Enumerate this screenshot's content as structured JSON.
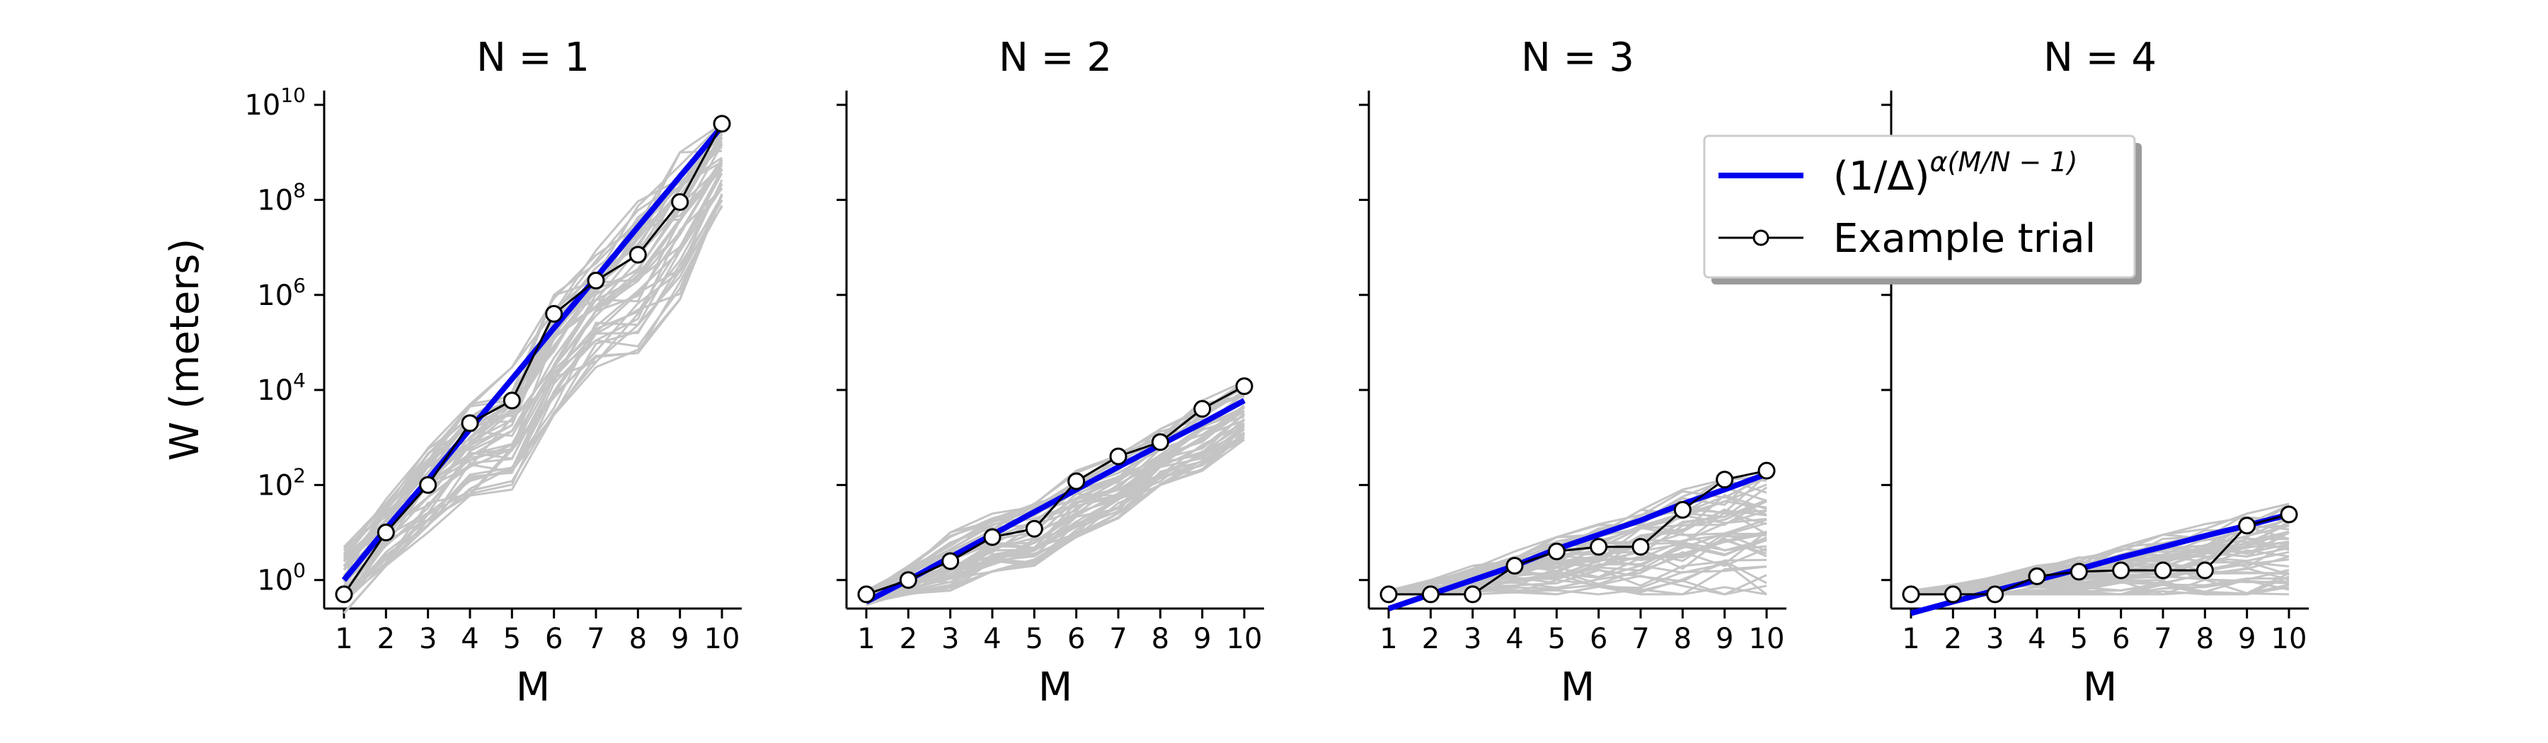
{
  "legend": {
    "fit_label": "(1/Δ)",
    "fit_exponent": "α(M/N − 1)",
    "example_label": "Example trial",
    "placement": "upper-right (over panels N = 3 and N = 4)"
  },
  "colors": {
    "fit": "#0000ee",
    "example": "#000000",
    "trials": "#c4c4c4",
    "marker_fill": "#ffffff"
  },
  "chart_data": [
    {
      "type": "line",
      "title": "N = 1",
      "xlabel": "M",
      "ylabel": "W (meters)",
      "yscale": "log",
      "ylim_exp": [
        -1,
        10
      ],
      "yticks": [
        {
          "base": "10",
          "exp": "0"
        },
        {
          "base": "10",
          "exp": "2"
        },
        {
          "base": "10",
          "exp": "4"
        },
        {
          "base": "10",
          "exp": "6"
        },
        {
          "base": "10",
          "exp": "8"
        },
        {
          "base": "10",
          "exp": "10"
        }
      ],
      "xticks": [
        "1",
        "2",
        "3",
        "4",
        "5",
        "6",
        "7",
        "8",
        "9",
        "10"
      ],
      "x": [
        1,
        2,
        3,
        4,
        5,
        6,
        7,
        8,
        9,
        10
      ],
      "fit_line": [
        1.0,
        12,
        130,
        1500,
        17000,
        200000,
        2300000,
        27000000,
        310000000,
        3500000000
      ],
      "example_trial": [
        0.5,
        10,
        100,
        2000,
        6000,
        400000,
        2000000,
        7000000,
        90000000,
        4000000000
      ],
      "trials_band_low": [
        0.2,
        2,
        10,
        60,
        80,
        3000,
        30000,
        60000,
        800000,
        70000000
      ],
      "trials_band_high": [
        5,
        50,
        600,
        5000,
        30000,
        1000000,
        10000000,
        100000000,
        1000000000,
        4000000000
      ]
    },
    {
      "type": "line",
      "title": "N = 2",
      "xlabel": "M",
      "ylabel": "",
      "yscale": "log",
      "ylim_exp": [
        -1,
        10
      ],
      "xticks": [
        "1",
        "2",
        "3",
        "4",
        "5",
        "6",
        "7",
        "8",
        "9",
        "10"
      ],
      "x": [
        1,
        2,
        3,
        4,
        5,
        6,
        7,
        8,
        9,
        10
      ],
      "fit_line": [
        0.35,
        1.0,
        3.0,
        9,
        27,
        80,
        240,
        700,
        2000,
        6000
      ],
      "example_trial": [
        0.5,
        1.0,
        2.5,
        8,
        12,
        120,
        400,
        800,
        4000,
        12000
      ],
      "trials_band_low": [
        0.3,
        0.5,
        0.6,
        1.5,
        2,
        8,
        20,
        100,
        200,
        900
      ],
      "trials_band_high": [
        0.6,
        2,
        10,
        25,
        50,
        200,
        500,
        1500,
        6000,
        15000
      ]
    },
    {
      "type": "line",
      "title": "N = 3",
      "xlabel": "M",
      "ylabel": "",
      "yscale": "log",
      "ylim_exp": [
        -1,
        10
      ],
      "xticks": [
        "1",
        "2",
        "3",
        "4",
        "5",
        "6",
        "7",
        "8",
        "9",
        "10"
      ],
      "x": [
        1,
        2,
        3,
        4,
        5,
        6,
        7,
        8,
        9,
        10
      ],
      "fit_line": [
        0.25,
        0.5,
        1.0,
        2.0,
        4.5,
        9,
        18,
        40,
        80,
        170
      ],
      "example_trial": [
        0.5,
        0.5,
        0.5,
        2,
        4,
        5,
        5,
        30,
        130,
        200
      ],
      "trials_band_low": [
        0.5,
        0.5,
        0.5,
        0.5,
        0.5,
        0.5,
        0.5,
        0.5,
        0.5,
        0.5
      ],
      "trials_band_high": [
        0.6,
        1.0,
        2,
        4,
        8,
        15,
        30,
        80,
        150,
        300
      ]
    },
    {
      "type": "line",
      "title": "N = 4",
      "xlabel": "M",
      "ylabel": "",
      "yscale": "log",
      "ylim_exp": [
        -1,
        10
      ],
      "xticks": [
        "1",
        "2",
        "3",
        "4",
        "5",
        "6",
        "7",
        "8",
        "9",
        "10"
      ],
      "x": [
        1,
        2,
        3,
        4,
        5,
        6,
        7,
        8,
        9,
        10
      ],
      "fit_line": [
        0.2,
        0.35,
        0.6,
        1.0,
        1.7,
        3.0,
        5,
        8.5,
        14,
        24
      ],
      "example_trial": [
        0.5,
        0.5,
        0.5,
        1.2,
        1.5,
        1.6,
        1.6,
        1.6,
        14,
        24
      ],
      "trials_band_low": [
        0.5,
        0.5,
        0.5,
        0.5,
        0.5,
        0.5,
        0.5,
        0.5,
        0.5,
        0.5
      ],
      "trials_band_high": [
        0.6,
        0.8,
        1.2,
        2,
        3,
        5,
        9,
        15,
        25,
        40
      ]
    }
  ]
}
